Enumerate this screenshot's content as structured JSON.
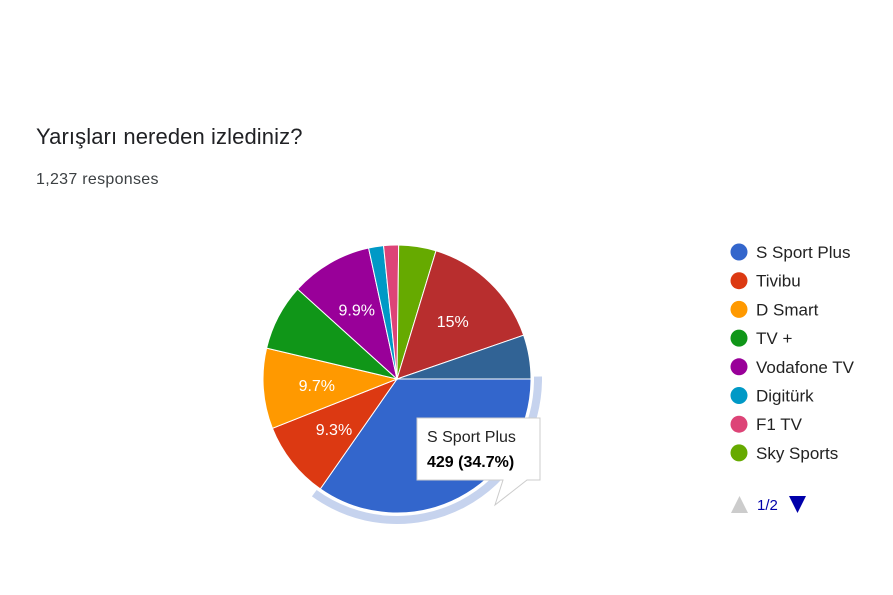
{
  "question": {
    "title": "Yarışları nereden izlediniz?",
    "responses": "1,237 responses"
  },
  "chart_data": {
    "type": "pie",
    "start_angle_deg": 90,
    "direction": "clockwise",
    "slices": [
      {
        "name": "S Sport Plus",
        "value": 34.7,
        "color": "#3366cc",
        "label": "",
        "highlighted": true
      },
      {
        "name": "Tivibu",
        "value": 9.3,
        "color": "#dc3912",
        "label": "9.3%"
      },
      {
        "name": "D Smart",
        "value": 9.7,
        "color": "#ff9900",
        "label": "9.7%"
      },
      {
        "name": "TV +",
        "value": 8.0,
        "color": "#109618",
        "label": ""
      },
      {
        "name": "Vodafone TV",
        "value": 9.9,
        "color": "#990099",
        "label": "9.9%"
      },
      {
        "name": "Digitürk",
        "value": 1.8,
        "color": "#0099c6",
        "label": ""
      },
      {
        "name": "F1 TV",
        "value": 1.8,
        "color": "#dd4477",
        "label": ""
      },
      {
        "name": "Sky Sports",
        "value": 4.5,
        "color": "#66aa00",
        "label": ""
      },
      {
        "name": "",
        "value": 15.0,
        "color": "#b82e2e",
        "label": "15%"
      },
      {
        "name": "",
        "value": 5.3,
        "color": "#316395",
        "label": ""
      }
    ],
    "legend": {
      "position": "right",
      "items": [
        "S Sport Plus",
        "Tivibu",
        "D Smart",
        "TV +",
        "Vodafone TV",
        "Digitürk",
        "F1 TV",
        "Sky Sports"
      ],
      "page": "1/2"
    },
    "tooltip": {
      "title": "S Sport Plus",
      "value": "429 (34.7%)"
    }
  }
}
